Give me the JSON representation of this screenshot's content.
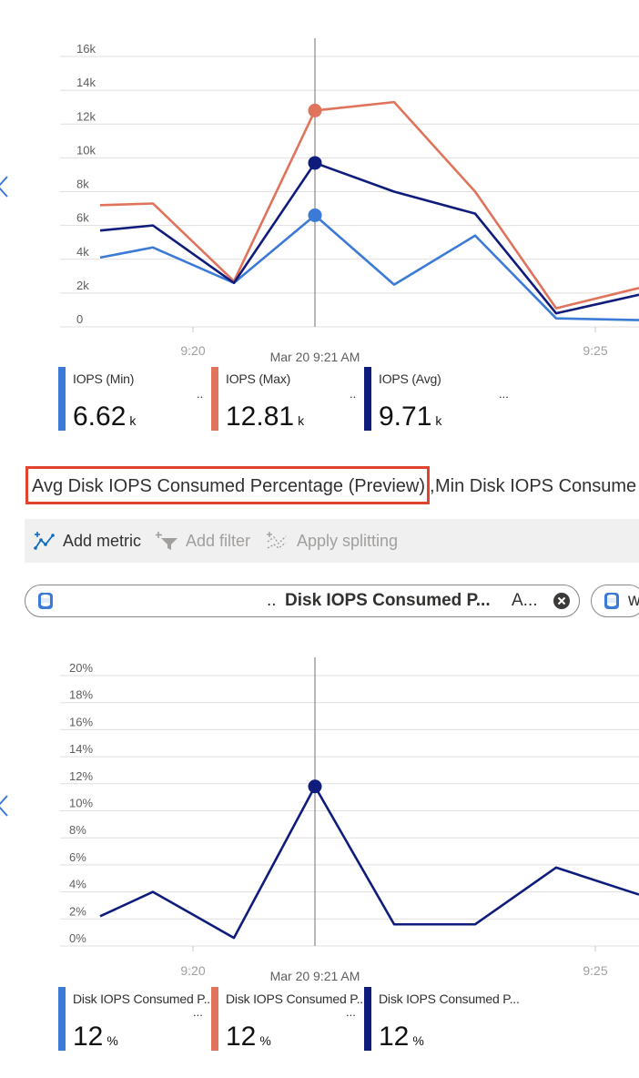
{
  "chart_data": [
    {
      "type": "line",
      "title": "",
      "xlabel": "",
      "ylabel": "",
      "x_tick_labels": [
        "9:20",
        "9:25"
      ],
      "cursor_label": "Mar 20 9:21 AM",
      "y_tick_labels": [
        "0",
        "2k",
        "4k",
        "6k",
        "8k",
        "10k",
        "12k",
        "14k",
        "16k"
      ],
      "ylim": [
        0,
        16000
      ],
      "grid": true,
      "series": [
        {
          "name": "IOPS (Min)",
          "color": "#3b7ad6",
          "values": [
            4100,
            4700,
            2600,
            6600,
            2500,
            5400,
            500,
            400
          ]
        },
        {
          "name": "IOPS (Max)",
          "color": "#e0735b",
          "values": [
            7200,
            7300,
            2700,
            12800,
            13300,
            8000,
            1100,
            2300
          ]
        },
        {
          "name": "IOPS (Avg)",
          "color": "#0f1c7c",
          "values": [
            5700,
            6000,
            2600,
            9700,
            8000,
            6700,
            800,
            1900
          ]
        }
      ]
    },
    {
      "type": "line",
      "title": "",
      "xlabel": "",
      "ylabel": "",
      "x_tick_labels": [
        "9:20",
        "9:25"
      ],
      "cursor_label": "Mar 20 9:21 AM",
      "y_tick_labels": [
        "0%",
        "2%",
        "4%",
        "6%",
        "8%",
        "10%",
        "12%",
        "14%",
        "16%",
        "18%",
        "20%"
      ],
      "ylim": [
        0,
        20
      ],
      "grid": true,
      "series": [
        {
          "name": "Disk IOPS Consumed P...",
          "color": "#0f1c7c",
          "values": [
            2.2,
            4,
            0.6,
            11.8,
            1.6,
            1.6,
            5.8,
            3.8
          ]
        }
      ]
    }
  ],
  "legend_top": [
    {
      "label": "IOPS (Min)",
      "value": "6.62",
      "unit": "k",
      "color": "#3b7ad6",
      "suffix": ".."
    },
    {
      "label": "IOPS (Max)",
      "value": "12.81",
      "unit": "k",
      "color": "#e0735b",
      "suffix": ".."
    },
    {
      "label": "IOPS (Avg)",
      "value": "9.71",
      "unit": "k",
      "color": "#0f1c7c",
      "suffix": "..."
    }
  ],
  "legend_bottom": [
    {
      "label": "Disk IOPS Consumed P...",
      "value": "12",
      "unit": "%",
      "color": "#3b7ad6",
      "suffix": "..."
    },
    {
      "label": "Disk IOPS Consumed P...",
      "value": "12",
      "unit": "%",
      "color": "#e0735b",
      "suffix": "..."
    },
    {
      "label": "Disk IOPS Consumed P...",
      "value": "12",
      "unit": "%",
      "color": "#0f1c7c",
      "suffix": ""
    }
  ],
  "tabs": {
    "active": "Avg Disk IOPS Consumed Percentage (Preview)",
    "separator": ",",
    "next": "Min Disk IOPS Consume"
  },
  "toolbar": {
    "add_metric": "Add metric",
    "add_filter": "Add filter",
    "apply_splitting": "Apply splitting"
  },
  "pill": {
    "prefix": "..",
    "metric": "Disk IOPS Consumed P...",
    "agg": "A...",
    "second": "w"
  },
  "colors": {
    "accent_red": "#e0432e",
    "min": "#3b7ad6",
    "max": "#e0735b",
    "avg": "#0f1c7c"
  }
}
